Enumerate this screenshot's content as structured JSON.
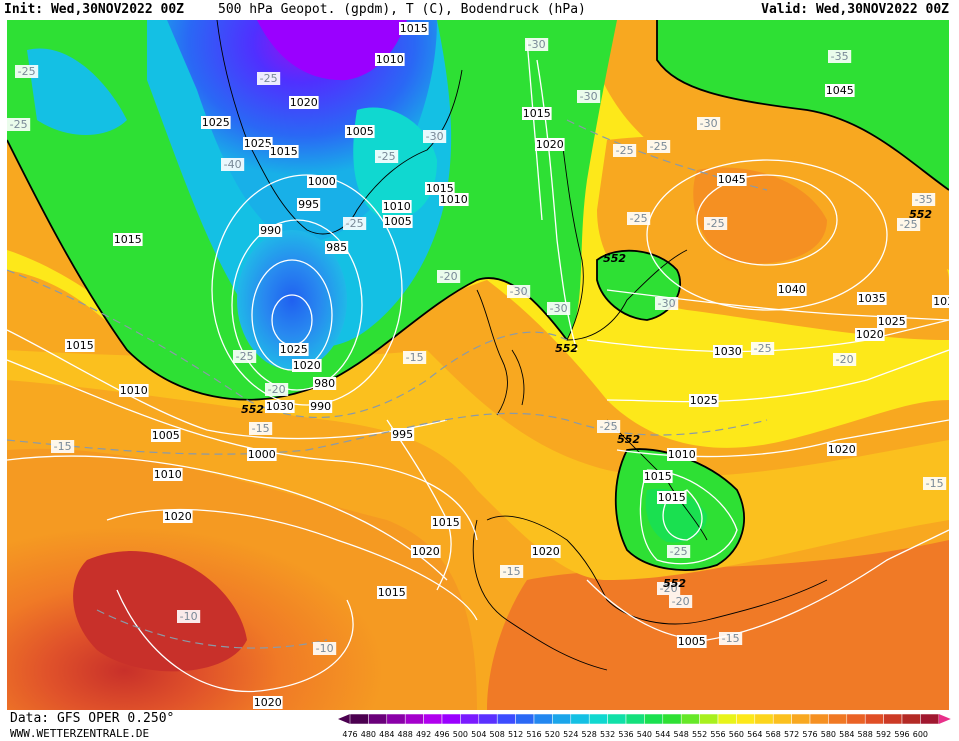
{
  "header": {
    "init": "Init: Wed,30NOV2022 00Z",
    "title": "500 hPa Geopot. (gpdm), T (C), Bodendruck (hPa)",
    "valid": "Valid: Wed,30NOV2022 00Z"
  },
  "footer": {
    "source": "Data: GFS OPER 0.250°",
    "website": "WWW.WETTERZENTRALE.DE"
  },
  "legend": {
    "levels": [
      "476",
      "480",
      "484",
      "488",
      "492",
      "496",
      "500",
      "504",
      "508",
      "512",
      "516",
      "520",
      "524",
      "528",
      "532",
      "536",
      "540",
      "544",
      "548",
      "552",
      "556",
      "560",
      "564",
      "568",
      "572",
      "576",
      "580",
      "584",
      "588",
      "592",
      "596",
      "600"
    ],
    "colors": [
      "#4b0050",
      "#6a007a",
      "#8a00a8",
      "#a400cc",
      "#b000ee",
      "#9a00ff",
      "#7a1aff",
      "#5a30ff",
      "#3c4cff",
      "#2a68f5",
      "#2287f0",
      "#1aa5ea",
      "#14c0e4",
      "#10d8d0",
      "#10e0a8",
      "#14e07c",
      "#1ae050",
      "#2ee034",
      "#66e828",
      "#a8f01e",
      "#e8f41a",
      "#fde81a",
      "#fcd51c",
      "#fbc01e",
      "#f8a820",
      "#f59022",
      "#f07824",
      "#ea6226",
      "#e04e26",
      "#cc3a26",
      "#b32a26",
      "#a01830"
    ]
  },
  "map_labels": {
    "pressure": [
      {
        "text": "1015"
      },
      {
        "text": "1010"
      },
      {
        "text": "1020"
      },
      {
        "text": "1025"
      },
      {
        "text": "1025"
      },
      {
        "text": "1015"
      },
      {
        "text": "1005"
      },
      {
        "text": "1000"
      },
      {
        "text": "995"
      },
      {
        "text": "990"
      },
      {
        "text": "985"
      },
      {
        "text": "1010"
      },
      {
        "text": "1005"
      },
      {
        "text": "1015"
      },
      {
        "text": "1010"
      },
      {
        "text": "1015"
      },
      {
        "text": "1020"
      },
      {
        "text": "1045"
      },
      {
        "text": "1045"
      },
      {
        "text": "1040"
      },
      {
        "text": "1035"
      },
      {
        "text": "103"
      },
      {
        "text": "1025"
      },
      {
        "text": "1020"
      },
      {
        "text": "1030"
      },
      {
        "text": "1025"
      },
      {
        "text": "1020"
      },
      {
        "text": "1015"
      },
      {
        "text": "1015"
      },
      {
        "text": "1010"
      },
      {
        "text": "1030"
      },
      {
        "text": "1025"
      },
      {
        "text": "1020"
      },
      {
        "text": "980"
      },
      {
        "text": "990"
      },
      {
        "text": "995"
      },
      {
        "text": "1000"
      },
      {
        "text": "1005"
      },
      {
        "text": "1010"
      },
      {
        "text": "1015"
      },
      {
        "text": "1015"
      },
      {
        "text": "1020"
      },
      {
        "text": "1010"
      },
      {
        "text": "1015"
      },
      {
        "text": "1020"
      },
      {
        "text": "1020"
      },
      {
        "text": "1015"
      },
      {
        "text": "1020"
      },
      {
        "text": "1005"
      }
    ],
    "temperature": [
      {
        "text": "-25"
      },
      {
        "text": "-25"
      },
      {
        "text": "-30"
      },
      {
        "text": "-30"
      },
      {
        "text": "-35"
      },
      {
        "text": "-30"
      },
      {
        "text": "-25"
      },
      {
        "text": "-25"
      },
      {
        "text": "-30"
      },
      {
        "text": "-25"
      },
      {
        "text": "-40"
      },
      {
        "text": "-25"
      },
      {
        "text": "-20"
      },
      {
        "text": "-25"
      },
      {
        "text": "-30"
      },
      {
        "text": "-25"
      },
      {
        "text": "-25"
      },
      {
        "text": "-30"
      },
      {
        "text": "-25"
      },
      {
        "text": "-35"
      },
      {
        "text": "-30"
      },
      {
        "text": "-25"
      },
      {
        "text": "-20"
      },
      {
        "text": "-15"
      },
      {
        "text": "-20"
      },
      {
        "text": "-15"
      },
      {
        "text": "-15"
      },
      {
        "text": "-25"
      },
      {
        "text": "-20"
      },
      {
        "text": "-25"
      },
      {
        "text": "-20"
      },
      {
        "text": "-15"
      },
      {
        "text": "-15"
      },
      {
        "text": "-10"
      },
      {
        "text": "-10"
      },
      {
        "text": "-25"
      },
      {
        "text": "-15"
      }
    ],
    "geopotential": [
      {
        "text": "552"
      },
      {
        "text": "552"
      },
      {
        "text": "552"
      },
      {
        "text": "552"
      },
      {
        "text": "552"
      },
      {
        "text": "552"
      }
    ]
  }
}
